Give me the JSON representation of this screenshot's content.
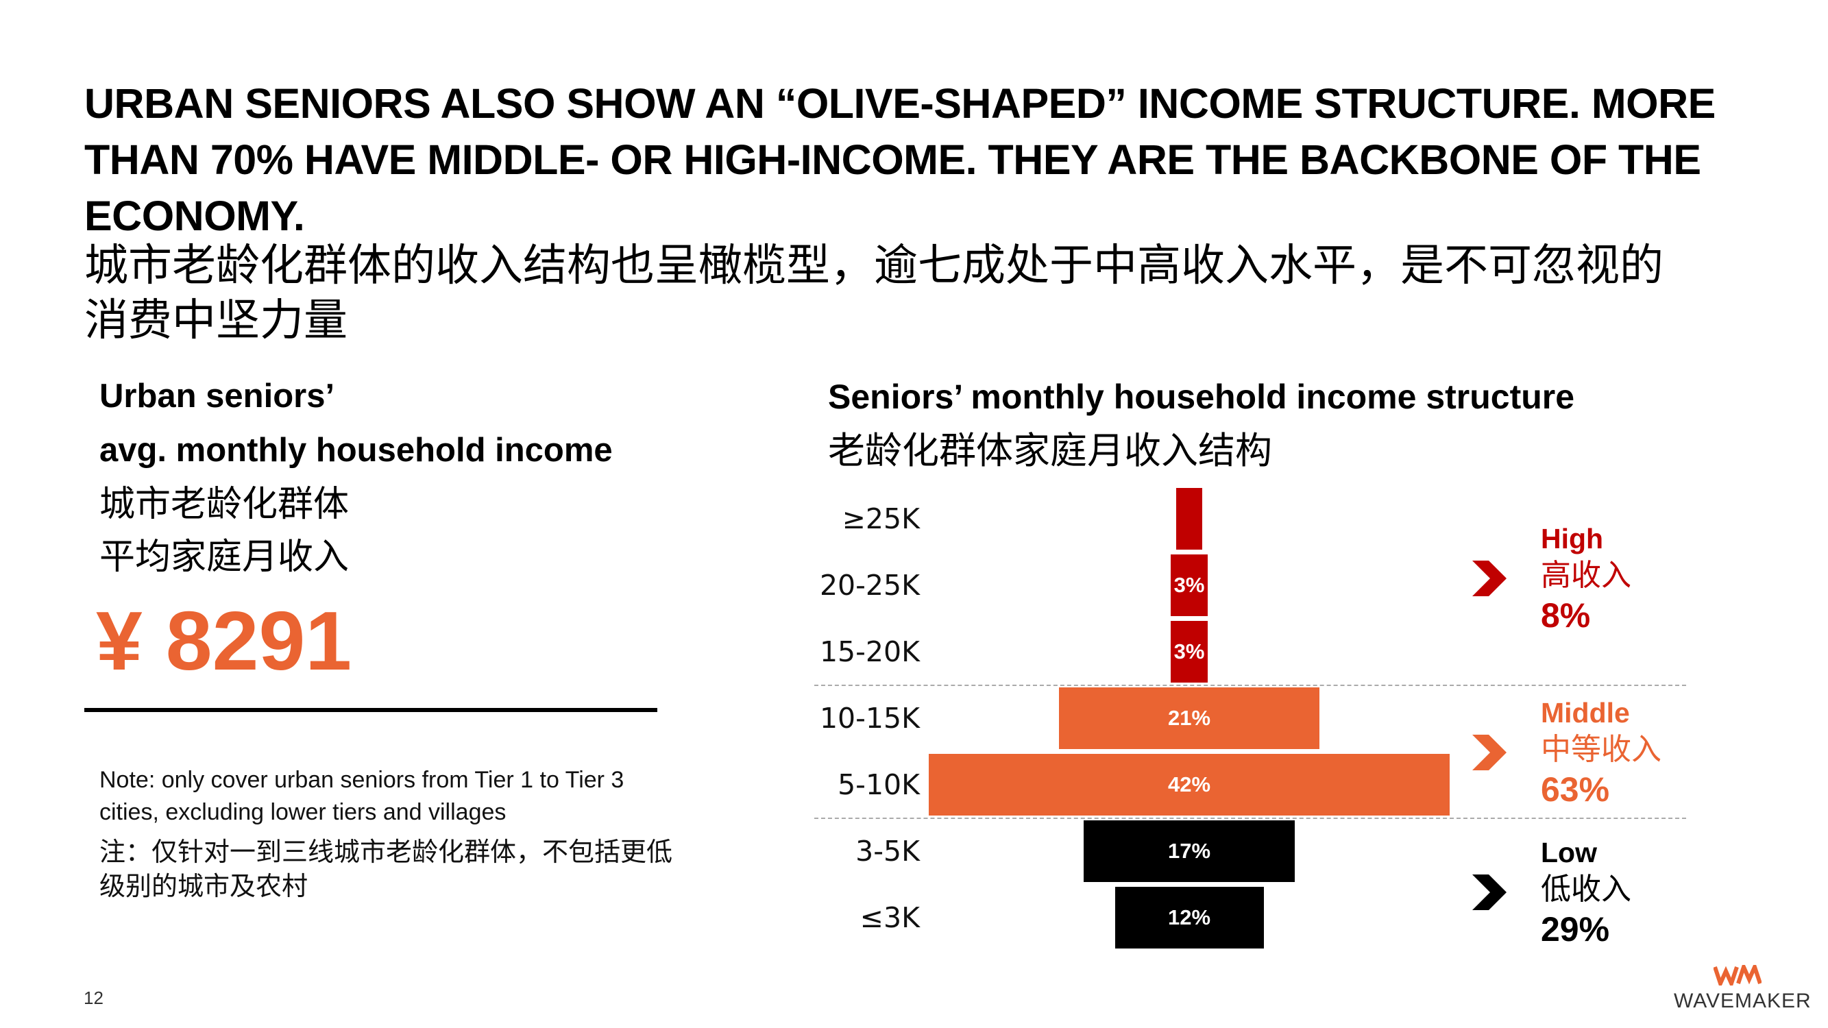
{
  "headline": {
    "en_line1": "URBAN SENIORS ALSO SHOW AN “OLIVE-SHAPED” INCOME STRUCTURE. MORE",
    "en_line2": "THAN 70% HAVE MIDDLE- OR HIGH-INCOME. THEY ARE THE BACKBONE OF THE",
    "en_line3": "ECONOMY.",
    "cn_line1": "城市老龄化群体的收入结构也呈橄榄型，逾七成处于中高收入水平，是不可忽视的",
    "cn_line2": "消费中坚力量"
  },
  "avg_income": {
    "en_line1": "Urban seniors’",
    "en_line2": "avg. monthly household income",
    "cn_line1": "城市老龄化群体",
    "cn_line2": "平均家庭月收入",
    "value": "¥ 8291"
  },
  "note": {
    "en": "Note: only cover urban seniors from Tier 1 to Tier 3 cities, excluding lower tiers and villages",
    "cn": "注：仅针对一到三线城市老龄化群体，不包括更低级别的城市及农村"
  },
  "chart_data": {
    "type": "bar",
    "orientation": "horizontal-centered",
    "title": "Seniors’ monthly household income structure",
    "title_cn": "老龄化群体家庭月收入结构",
    "unit": "%",
    "categories": [
      "≥25K",
      "20-25K",
      "15-20K",
      "10-15K",
      "5-10K",
      "3-5K",
      "≤3K"
    ],
    "values": [
      2,
      3,
      3,
      21,
      42,
      17,
      12
    ],
    "labels": [
      "",
      "3%",
      "3%",
      "21%",
      "42%",
      "17%",
      "12%"
    ],
    "groups_of_categories": [
      "high",
      "high",
      "high",
      "middle",
      "middle",
      "low",
      "low"
    ],
    "xlim": [
      0,
      42
    ],
    "groups": [
      {
        "key": "high",
        "name_en": "High",
        "name_cn": "高收入",
        "share": "8%",
        "color": "#c00000"
      },
      {
        "key": "middle",
        "name_en": "Middle",
        "name_cn": "中等收入",
        "share": "63%",
        "color": "#ea6432"
      },
      {
        "key": "low",
        "name_en": "Low",
        "name_cn": "低收入",
        "share": "29%",
        "color": "#000000"
      }
    ]
  },
  "footer": {
    "page_number": "12",
    "brand": "WAVEMAKER",
    "brand_mark": "WM",
    "brand_mark_color": "#ea6432"
  }
}
